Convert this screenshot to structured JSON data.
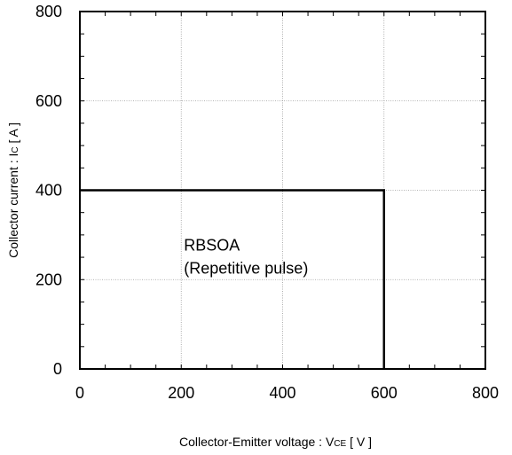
{
  "chart_data": {
    "type": "line",
    "xlabel_parts": {
      "main": "Collector-Emitter voltage  :  V",
      "sub": "CE",
      "unit": " [ V ]"
    },
    "ylabel_parts": {
      "main": "Collector current : I",
      "sub": "C",
      "unit": " [ A ]"
    },
    "xlim": [
      0,
      800
    ],
    "ylim": [
      0,
      800
    ],
    "xticks": [
      0,
      200,
      400,
      600,
      800
    ],
    "yticks": [
      0,
      200,
      400,
      600,
      800
    ],
    "x_minor_step": 50,
    "y_minor_step": 50,
    "grid": true,
    "series": [
      {
        "x": [
          0,
          600,
          600
        ],
        "y": [
          400,
          400,
          0
        ]
      }
    ],
    "annotation": {
      "lines": [
        "RBSOA",
        "(Repetitive pulse)"
      ],
      "x": 200,
      "y": 265
    }
  }
}
